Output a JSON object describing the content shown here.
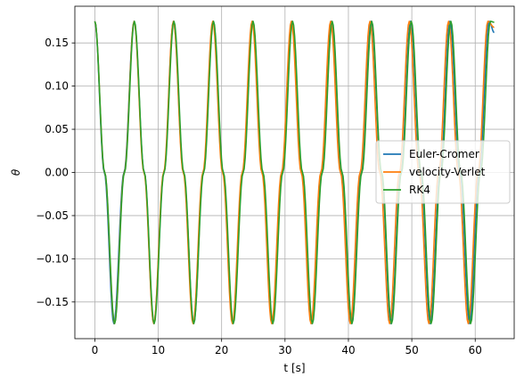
{
  "chart_data": {
    "type": "line",
    "xlabel": "t [s]",
    "ylabel": "θ",
    "xlim": [
      -3.15,
      66.15
    ],
    "ylim": [
      -0.1925,
      0.1925
    ],
    "xticks": [
      0,
      10,
      20,
      30,
      40,
      50,
      60
    ],
    "xtick_labels": [
      "0",
      "10",
      "20",
      "30",
      "40",
      "50",
      "60"
    ],
    "yticks": [
      -0.15,
      -0.1,
      -0.05,
      0.0,
      0.05,
      0.1,
      0.15
    ],
    "ytick_labels": [
      "−0.15",
      "−0.10",
      "−0.05",
      "0.00",
      "0.05",
      "0.10",
      "0.15"
    ],
    "grid": true,
    "legend_position": "center-right",
    "series": [
      {
        "name": "Euler-Cromer",
        "color": "#1f77b4",
        "x": [
          0,
          1.5,
          3.0,
          4.6,
          6.2,
          7.8,
          9.3,
          10.9,
          12.4,
          14.0,
          15.6,
          17.1,
          18.7,
          20.2,
          21.8,
          23.3,
          24.9,
          26.4,
          28.0,
          29.5,
          31.1,
          32.6,
          34.2,
          35.8,
          37.3,
          38.9,
          40.5,
          42.0,
          43.6,
          45.2,
          46.7,
          48.3,
          49.8,
          51.4,
          52.9,
          54.5,
          56.0,
          57.6,
          59.1,
          60.6,
          62.2,
          63.0
        ],
        "y": [
          0.175,
          0.0,
          -0.175,
          0.0,
          0.175,
          0.0,
          -0.175,
          0.0,
          0.175,
          0.0,
          -0.175,
          0.0,
          0.175,
          0.0,
          -0.175,
          0.0,
          0.175,
          0.0,
          -0.175,
          0.0,
          0.175,
          0.0,
          -0.175,
          0.0,
          0.175,
          0.0,
          -0.175,
          0.0,
          0.175,
          0.0,
          -0.175,
          0.0,
          0.175,
          0.0,
          -0.175,
          0.0,
          0.175,
          0.0,
          -0.175,
          0.0,
          0.175,
          0.162
        ]
      },
      {
        "name": "velocity-Verlet",
        "color": "#ff7f0e",
        "x": [
          0,
          1.55,
          3.1,
          4.65,
          6.2,
          7.75,
          9.3,
          10.85,
          12.4,
          13.95,
          15.5,
          17.05,
          18.6,
          20.15,
          21.7,
          23.25,
          24.8,
          26.35,
          27.9,
          29.45,
          31.0,
          32.55,
          34.1,
          35.65,
          37.2,
          38.75,
          40.3,
          41.85,
          43.4,
          44.95,
          46.5,
          48.05,
          49.6,
          51.15,
          52.7,
          54.25,
          55.8,
          57.35,
          58.9,
          60.45,
          62.0,
          63.0
        ],
        "y": [
          0.175,
          0.0,
          -0.175,
          0.0,
          0.175,
          0.0,
          -0.175,
          0.0,
          0.175,
          0.0,
          -0.175,
          0.0,
          0.175,
          0.0,
          -0.175,
          0.0,
          0.175,
          0.0,
          -0.175,
          0.0,
          0.175,
          0.0,
          -0.175,
          0.0,
          0.175,
          0.0,
          -0.175,
          0.0,
          0.175,
          0.0,
          -0.175,
          0.0,
          0.175,
          0.0,
          -0.175,
          0.0,
          0.175,
          0.0,
          -0.175,
          0.0,
          0.175,
          0.168
        ]
      },
      {
        "name": "RK4",
        "color": "#2ca02c",
        "x": [
          0,
          1.56,
          3.12,
          4.68,
          6.24,
          7.8,
          9.36,
          10.92,
          12.48,
          14.04,
          15.6,
          17.16,
          18.72,
          20.28,
          21.84,
          23.4,
          24.96,
          26.52,
          28.08,
          29.64,
          31.2,
          32.76,
          34.32,
          35.88,
          37.44,
          39.0,
          40.56,
          42.12,
          43.68,
          45.24,
          46.8,
          48.36,
          49.92,
          51.48,
          53.04,
          54.6,
          56.16,
          57.72,
          59.28,
          60.84,
          62.4,
          63.0
        ],
        "y": [
          0.175,
          0.0,
          -0.175,
          0.0,
          0.175,
          0.0,
          -0.175,
          0.0,
          0.175,
          0.0,
          -0.175,
          0.0,
          0.175,
          0.0,
          -0.175,
          0.0,
          0.175,
          0.0,
          -0.175,
          0.0,
          0.175,
          0.0,
          -0.175,
          0.0,
          0.175,
          0.0,
          -0.175,
          0.0,
          0.175,
          0.0,
          -0.175,
          0.0,
          0.175,
          0.0,
          -0.175,
          0.0,
          0.175,
          0.0,
          -0.175,
          0.0,
          0.175,
          0.174
        ]
      }
    ]
  }
}
